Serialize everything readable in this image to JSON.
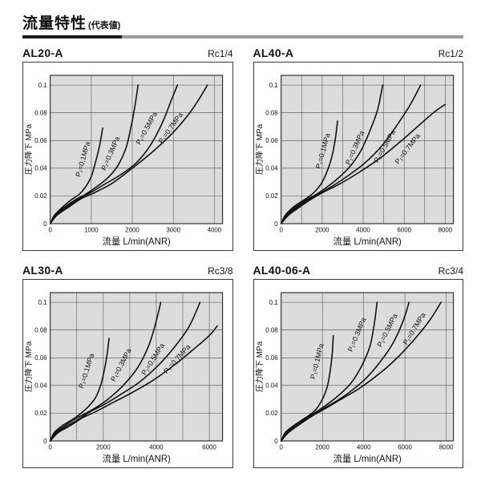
{
  "page": {
    "title": "流量特性",
    "title_suffix": "(代表値)"
  },
  "colors": {
    "plot_bg": "#dcdcdc",
    "grid": "#4d4d4d",
    "border": "#222222",
    "curve": "#111111",
    "rule_black": "#1a1a1a",
    "rule_gray": "#9c9c9c",
    "text": "#111111"
  },
  "chart_data": [
    {
      "type": "line",
      "title": "AL20-A",
      "port": "Rc1/4",
      "xlabel": "流量 L/min(ANR)",
      "ylabel": "圧力降下 MPa",
      "xlim": [
        0,
        4200
      ],
      "ylim": [
        0,
        0.107
      ],
      "grid": true,
      "x_grid_step": 1000,
      "x_ticks": [
        0,
        1000,
        2000,
        3000,
        4000
      ],
      "x_tick_labels": [
        "0",
        "1000",
        "2000",
        "3000",
        "4000"
      ],
      "y_ticks": [
        0,
        0.02,
        0.04,
        0.06,
        0.08,
        0.1
      ],
      "y_tick_labels": [
        "0",
        "0.02",
        "0.04",
        "0.06",
        "0.08",
        "0.1"
      ],
      "series": [
        {
          "name": "P₁=0.1MPa",
          "label_at": [
            850,
            0.046
          ],
          "label_angle": -74,
          "points": [
            [
              0,
              0
            ],
            [
              100,
              0.006
            ],
            [
              300,
              0.012
            ],
            [
              500,
              0.017
            ],
            [
              700,
              0.021
            ],
            [
              850,
              0.026
            ],
            [
              1000,
              0.034
            ],
            [
              1100,
              0.044
            ],
            [
              1200,
              0.056
            ],
            [
              1280,
              0.069
            ]
          ]
        },
        {
          "name": "P₁=0.3MPa",
          "label_at": [
            1520,
            0.05
          ],
          "label_angle": -66,
          "points": [
            [
              0,
              0
            ],
            [
              120,
              0.006
            ],
            [
              350,
              0.012
            ],
            [
              600,
              0.017
            ],
            [
              850,
              0.021
            ],
            [
              1100,
              0.026
            ],
            [
              1400,
              0.033
            ],
            [
              1650,
              0.042
            ],
            [
              1850,
              0.055
            ],
            [
              1970,
              0.07
            ],
            [
              2060,
              0.084
            ],
            [
              2140,
              0.1
            ]
          ]
        },
        {
          "name": "P₁=0.5MPa",
          "label_at": [
            2400,
            0.068
          ],
          "label_angle": -61,
          "points": [
            [
              0,
              0
            ],
            [
              140,
              0.006
            ],
            [
              400,
              0.012
            ],
            [
              700,
              0.018
            ],
            [
              950,
              0.022
            ],
            [
              1300,
              0.028
            ],
            [
              1700,
              0.035
            ],
            [
              2100,
              0.044
            ],
            [
              2450,
              0.057
            ],
            [
              2750,
              0.074
            ],
            [
              2950,
              0.089
            ],
            [
              3100,
              0.1
            ]
          ]
        },
        {
          "name": "P₁=0.7MPa",
          "label_at": [
            2980,
            0.068
          ],
          "label_angle": -54,
          "points": [
            [
              0,
              0
            ],
            [
              160,
              0.006
            ],
            [
              450,
              0.012
            ],
            [
              750,
              0.018
            ],
            [
              1050,
              0.022
            ],
            [
              1500,
              0.029
            ],
            [
              2000,
              0.04
            ],
            [
              2500,
              0.052
            ],
            [
              3000,
              0.066
            ],
            [
              3400,
              0.08
            ],
            [
              3650,
              0.091
            ],
            [
              3830,
              0.1
            ]
          ]
        }
      ]
    },
    {
      "type": "line",
      "title": "AL40-A",
      "port": "Rc1/2",
      "xlabel": "流量 L/min(ANR)",
      "ylabel": "圧力降下 MPa",
      "xlim": [
        0,
        8400
      ],
      "ylim": [
        0,
        0.107
      ],
      "grid": true,
      "x_grid_step": 1000,
      "x_ticks": [
        0,
        2000,
        4000,
        6000,
        8000
      ],
      "x_tick_labels": [
        "0",
        "2000",
        "4000",
        "6000",
        "8000"
      ],
      "y_ticks": [
        0,
        0.02,
        0.04,
        0.06,
        0.08,
        0.1
      ],
      "y_tick_labels": [
        "0",
        "0.02",
        "0.04",
        "0.06",
        "0.08",
        "0.1"
      ],
      "series": [
        {
          "name": "P₁=0.1MPa",
          "label_at": [
            2150,
            0.052
          ],
          "label_angle": -74,
          "points": [
            [
              0,
              0
            ],
            [
              200,
              0.006
            ],
            [
              600,
              0.012
            ],
            [
              1000,
              0.016
            ],
            [
              1400,
              0.02
            ],
            [
              1700,
              0.024
            ],
            [
              2000,
              0.03
            ],
            [
              2300,
              0.04
            ],
            [
              2500,
              0.05
            ],
            [
              2650,
              0.062
            ],
            [
              2750,
              0.074
            ]
          ]
        },
        {
          "name": "P₁=0.3MPa",
          "label_at": [
            3700,
            0.054
          ],
          "label_angle": -66,
          "points": [
            [
              0,
              0
            ],
            [
              250,
              0.006
            ],
            [
              700,
              0.012
            ],
            [
              1200,
              0.017
            ],
            [
              1700,
              0.021
            ],
            [
              2200,
              0.026
            ],
            [
              2800,
              0.033
            ],
            [
              3400,
              0.042
            ],
            [
              3900,
              0.053
            ],
            [
              4300,
              0.066
            ],
            [
              4700,
              0.082
            ],
            [
              4950,
              0.1
            ]
          ]
        },
        {
          "name": "P₁=0.5MPa",
          "label_at": [
            5150,
            0.055
          ],
          "label_angle": -60,
          "points": [
            [
              0,
              0
            ],
            [
              300,
              0.006
            ],
            [
              800,
              0.012
            ],
            [
              1400,
              0.018
            ],
            [
              1900,
              0.022
            ],
            [
              2600,
              0.028
            ],
            [
              3300,
              0.035
            ],
            [
              4100,
              0.044
            ],
            [
              4900,
              0.056
            ],
            [
              5600,
              0.07
            ],
            [
              6300,
              0.086
            ],
            [
              6800,
              0.1
            ]
          ]
        },
        {
          "name": "P₁=0.7MPa",
          "label_at": [
            6250,
            0.053
          ],
          "label_angle": -52,
          "points": [
            [
              0,
              0
            ],
            [
              350,
              0.006
            ],
            [
              900,
              0.012
            ],
            [
              1500,
              0.018
            ],
            [
              2100,
              0.023
            ],
            [
              2900,
              0.029
            ],
            [
              3800,
              0.037
            ],
            [
              4800,
              0.047
            ],
            [
              5800,
              0.059
            ],
            [
              6800,
              0.072
            ],
            [
              7500,
              0.081
            ],
            [
              8000,
              0.086
            ]
          ]
        }
      ]
    },
    {
      "type": "line",
      "title": "AL30-A",
      "port": "Rc3/8",
      "xlabel": "流量 L/min(ANR)",
      "ylabel": "圧力降下 MPa",
      "xlim": [
        0,
        6500
      ],
      "ylim": [
        0,
        0.107
      ],
      "grid": true,
      "x_grid_step": 1000,
      "x_ticks": [
        0,
        2000,
        4000,
        6000
      ],
      "x_tick_labels": [
        "0",
        "2000",
        "4000",
        "6000"
      ],
      "y_ticks": [
        0,
        0.02,
        0.04,
        0.06,
        0.08,
        0.1
      ],
      "y_tick_labels": [
        "0",
        "0.02",
        "0.04",
        "0.06",
        "0.08",
        "0.1"
      ],
      "series": [
        {
          "name": "P₁=0.1MPa",
          "label_at": [
            1450,
            0.05
          ],
          "label_angle": -72,
          "points": [
            [
              0,
              0
            ],
            [
              150,
              0.006
            ],
            [
              450,
              0.011
            ],
            [
              800,
              0.015
            ],
            [
              1100,
              0.019
            ],
            [
              1400,
              0.024
            ],
            [
              1700,
              0.031
            ],
            [
              1900,
              0.04
            ],
            [
              2050,
              0.052
            ],
            [
              2150,
              0.063
            ],
            [
              2220,
              0.074
            ]
          ]
        },
        {
          "name": "P₁=0.3MPa",
          "label_at": [
            2750,
            0.054
          ],
          "label_angle": -62,
          "points": [
            [
              0,
              0
            ],
            [
              200,
              0.006
            ],
            [
              550,
              0.011
            ],
            [
              950,
              0.016
            ],
            [
              1350,
              0.02
            ],
            [
              1800,
              0.025
            ],
            [
              2300,
              0.032
            ],
            [
              2800,
              0.041
            ],
            [
              3300,
              0.053
            ],
            [
              3700,
              0.068
            ],
            [
              3950,
              0.083
            ],
            [
              4170,
              0.1
            ]
          ]
        },
        {
          "name": "P₁=0.5MPa",
          "label_at": [
            3950,
            0.058
          ],
          "label_angle": -57,
          "points": [
            [
              0,
              0
            ],
            [
              250,
              0.006
            ],
            [
              650,
              0.011
            ],
            [
              1100,
              0.016
            ],
            [
              1500,
              0.021
            ],
            [
              2100,
              0.027
            ],
            [
              2700,
              0.034
            ],
            [
              3400,
              0.043
            ],
            [
              4100,
              0.055
            ],
            [
              4700,
              0.068
            ],
            [
              5250,
              0.083
            ],
            [
              5650,
              0.1
            ]
          ]
        },
        {
          "name": "P₁=0.7MPa",
          "label_at": [
            4850,
            0.058
          ],
          "label_angle": -48,
          "points": [
            [
              0,
              0
            ],
            [
              300,
              0.006
            ],
            [
              750,
              0.011
            ],
            [
              1250,
              0.017
            ],
            [
              1700,
              0.021
            ],
            [
              2400,
              0.028
            ],
            [
              3100,
              0.035
            ],
            [
              3900,
              0.044
            ],
            [
              4700,
              0.055
            ],
            [
              5400,
              0.066
            ],
            [
              6000,
              0.076
            ],
            [
              6300,
              0.083
            ]
          ]
        }
      ]
    },
    {
      "type": "line",
      "title": "AL40-06-A",
      "port": "Rc3/4",
      "xlabel": "流量 L/min(ANR)",
      "ylabel": "圧力降下 MPa",
      "xlim": [
        0,
        8350
      ],
      "ylim": [
        0,
        0.107
      ],
      "grid": true,
      "x_grid_step": 2000,
      "x_ticks": [
        0,
        2000,
        4000,
        6000,
        8000
      ],
      "x_tick_labels": [
        "0",
        "2000",
        "4000",
        "6000",
        "8000"
      ],
      "y_ticks": [
        0,
        0.02,
        0.04,
        0.06,
        0.08,
        0.1
      ],
      "y_tick_labels": [
        "0",
        "0.02",
        "0.04",
        "0.06",
        "0.08",
        "0.1"
      ],
      "series": [
        {
          "name": "P₁=0.1MPa",
          "label_at": [
            1850,
            0.057
          ],
          "label_angle": -76,
          "points": [
            [
              0,
              0
            ],
            [
              200,
              0.006
            ],
            [
              600,
              0.011
            ],
            [
              1000,
              0.015
            ],
            [
              1400,
              0.019
            ],
            [
              1700,
              0.023
            ],
            [
              2000,
              0.03
            ],
            [
              2250,
              0.04
            ],
            [
              2400,
              0.053
            ],
            [
              2480,
              0.064
            ],
            [
              2530,
              0.076
            ]
          ]
        },
        {
          "name": "P₁=0.3MPa",
          "label_at": [
            3780,
            0.076
          ],
          "label_angle": -67,
          "points": [
            [
              0,
              0
            ],
            [
              250,
              0.006
            ],
            [
              700,
              0.011
            ],
            [
              1200,
              0.016
            ],
            [
              1700,
              0.021
            ],
            [
              2200,
              0.026
            ],
            [
              2800,
              0.033
            ],
            [
              3400,
              0.042
            ],
            [
              3900,
              0.054
            ],
            [
              4300,
              0.068
            ],
            [
              4500,
              0.083
            ],
            [
              4650,
              0.1
            ]
          ]
        },
        {
          "name": "P₁=0.5MPa",
          "label_at": [
            5250,
            0.079
          ],
          "label_angle": -63,
          "points": [
            [
              0,
              0
            ],
            [
              300,
              0.006
            ],
            [
              800,
              0.012
            ],
            [
              1400,
              0.017
            ],
            [
              1900,
              0.022
            ],
            [
              2600,
              0.028
            ],
            [
              3300,
              0.035
            ],
            [
              4100,
              0.045
            ],
            [
              4800,
              0.057
            ],
            [
              5400,
              0.07
            ],
            [
              5900,
              0.086
            ],
            [
              6200,
              0.1
            ]
          ]
        },
        {
          "name": "P₁=0.7MPa",
          "label_at": [
            6550,
            0.08
          ],
          "label_angle": -58,
          "points": [
            [
              0,
              0
            ],
            [
              350,
              0.006
            ],
            [
              900,
              0.012
            ],
            [
              1500,
              0.018
            ],
            [
              2100,
              0.023
            ],
            [
              2900,
              0.03
            ],
            [
              3800,
              0.038
            ],
            [
              4800,
              0.049
            ],
            [
              5700,
              0.061
            ],
            [
              6500,
              0.074
            ],
            [
              7200,
              0.087
            ],
            [
              7750,
              0.1
            ]
          ]
        }
      ]
    }
  ]
}
